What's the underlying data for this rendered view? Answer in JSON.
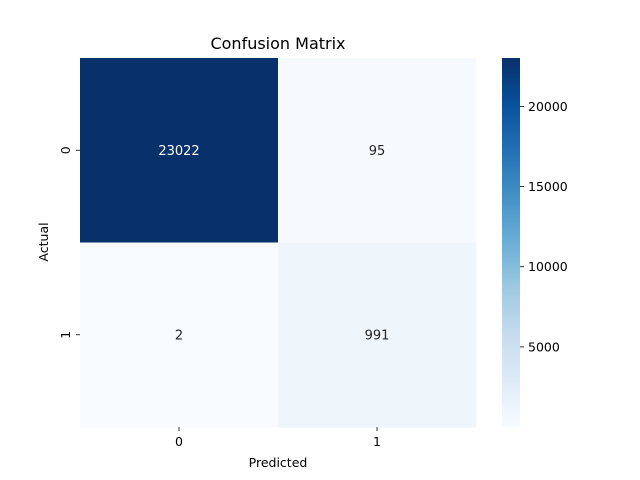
{
  "chart_data": {
    "type": "heatmap",
    "title": "Confusion Matrix",
    "xlabel": "Predicted",
    "ylabel": "Actual",
    "x_categories": [
      "0",
      "1"
    ],
    "y_categories": [
      "0",
      "1"
    ],
    "values": [
      [
        23022,
        95
      ],
      [
        2,
        991
      ]
    ],
    "value_labels": [
      [
        "23022",
        "95"
      ],
      [
        "2",
        "991"
      ]
    ],
    "colormap": "Blues",
    "colorbar": {
      "range": [
        2,
        23022
      ],
      "ticks": [
        5000,
        10000,
        15000,
        20000
      ],
      "tick_labels": [
        "5000",
        "10000",
        "15000",
        "20000"
      ]
    },
    "colors": {
      "low": "#f7fbff",
      "high": "#08306b"
    }
  }
}
